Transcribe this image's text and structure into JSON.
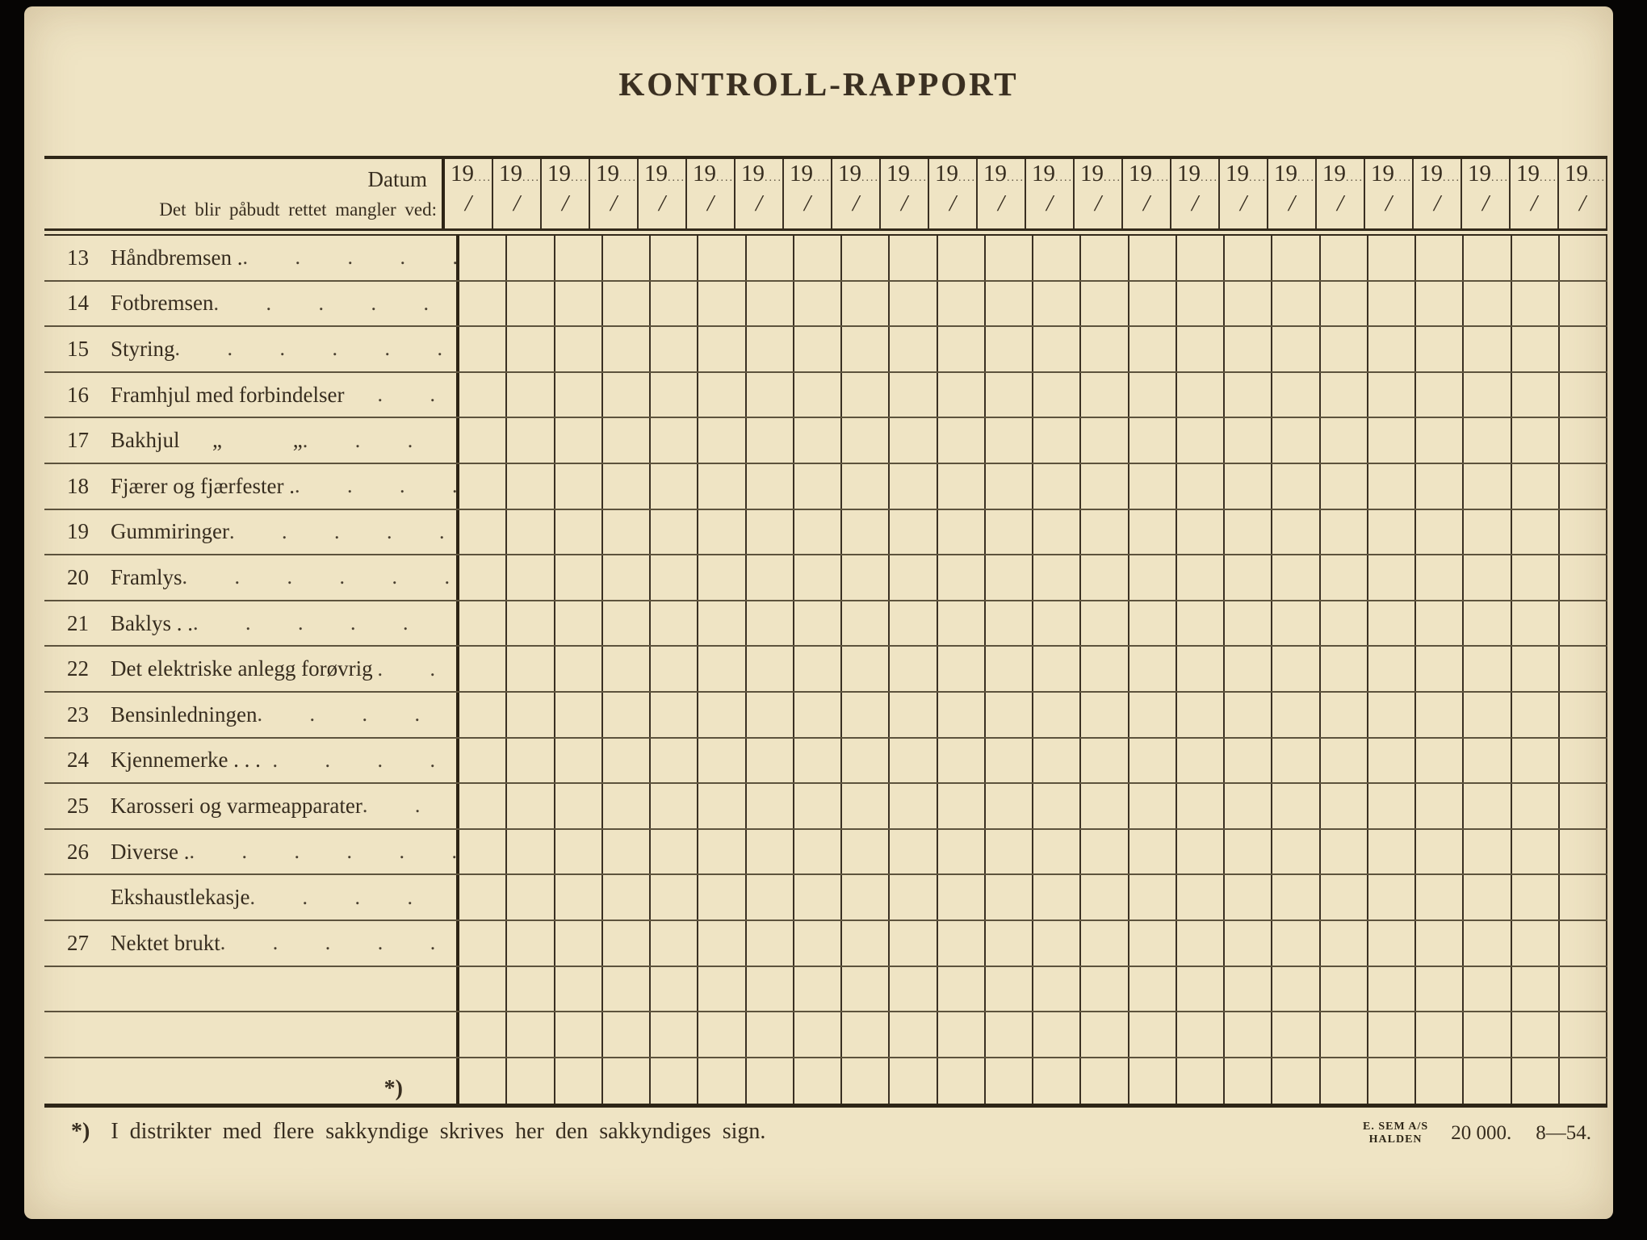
{
  "title": "KONTROLL-RAPPORT",
  "header": {
    "datum_label": "Datum",
    "instruction_label": "Det blir påbudt rettet mangler ved:",
    "year_prefix": "19",
    "year_dots": "....",
    "day_slash": "/",
    "column_count": 24
  },
  "rows": [
    {
      "num": "13",
      "label": "Håndbremsen .",
      "dots": ". . . . . ."
    },
    {
      "num": "14",
      "label": "Fotbremsen",
      "dots": ". . . . . . ."
    },
    {
      "num": "15",
      "label": "Styring",
      "dots": ". . . . . . . . ."
    },
    {
      "num": "16",
      "label": "Framhjul med forbindelser",
      "dots": ". ."
    },
    {
      "num": "17",
      "label": "Bakhjul      „             „",
      "dots": ". . . ."
    },
    {
      "num": "18",
      "label": "Fjærer og fjærfester .",
      "dots": ". . . . . ."
    },
    {
      "num": "19",
      "label": "Gummiringer",
      "dots": ". . . . . . ."
    },
    {
      "num": "20",
      "label": "Framlys",
      "dots": ". . . . . . ."
    },
    {
      "num": "21",
      "label": "Baklys . .",
      "dots": ". . . . . . ."
    },
    {
      "num": "22",
      "label": "Det elektriske anlegg forøvrig",
      "dots": ". ."
    },
    {
      "num": "23",
      "label": "Bensinledningen",
      "dots": ". . . . . . ."
    },
    {
      "num": "24",
      "label": "Kjennemerke . . .",
      "dots": ". . . ."
    },
    {
      "num": "25",
      "label": "Karosseri og varmeapparater",
      "dots": ". . ."
    },
    {
      "num": "26",
      "label": "Diverse .",
      "dots": ". . . . . ."
    },
    {
      "num": "",
      "label": "Ekshaustlekasje",
      "dots": ". . . . . ."
    },
    {
      "num": "27",
      "label": "Nektet brukt",
      "dots": ". . . . . . . . ."
    },
    {
      "num": "",
      "label": "",
      "dots": ""
    },
    {
      "num": "",
      "label": "",
      "dots": ""
    },
    {
      "num": "",
      "label": "",
      "dots": "",
      "marker": "*)"
    }
  ],
  "footnote": {
    "marker": "*)",
    "text": "I distrikter med flere sakkyndige skrives her den sakkyndiges sign."
  },
  "printer": {
    "name_line1": "E. SEM A/S",
    "name_line2": "HALDEN",
    "print_run": "20 000.",
    "date_code": "8—54."
  }
}
